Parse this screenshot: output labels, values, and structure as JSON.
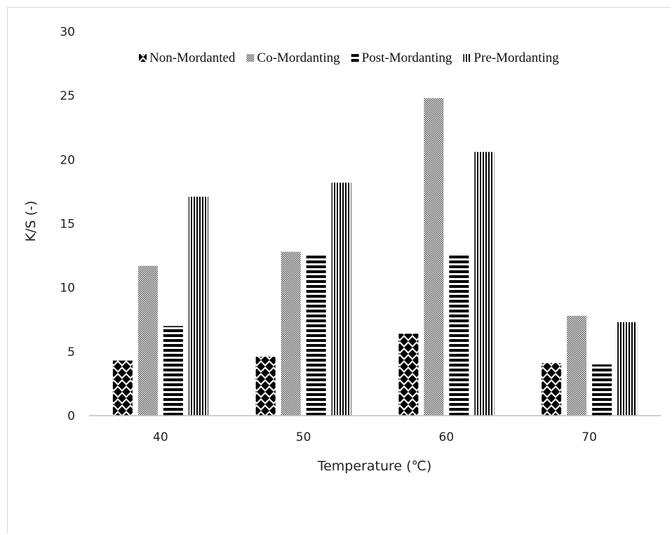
{
  "chart_data": {
    "type": "bar",
    "categories": [
      "40",
      "50",
      "60",
      "70"
    ],
    "series": [
      {
        "name": "Non-Mordanted",
        "values": [
          4.3,
          4.6,
          6.4,
          4.1
        ],
        "pattern": "diamond"
      },
      {
        "name": "Co-Mordanting",
        "values": [
          11.7,
          12.8,
          24.8,
          7.8
        ],
        "pattern": "checker"
      },
      {
        "name": "Post-Mordanting",
        "values": [
          7.0,
          12.5,
          12.6,
          4.0
        ],
        "pattern": "horizontal-stripes"
      },
      {
        "name": "Pre-Mordanting",
        "values": [
          17.1,
          18.2,
          20.6,
          7.3
        ],
        "pattern": "vertical-stripes"
      }
    ],
    "title": "",
    "xlabel": "Temperature (℃)",
    "ylabel": "K/S (-)",
    "ylim": [
      0,
      30
    ],
    "yticks": [
      0,
      5,
      10,
      15,
      20,
      25,
      30
    ],
    "grid": false,
    "legend_position": "top",
    "colors": {
      "ink": "#000000",
      "axis": "#bfbfbf",
      "background": "#ffffff"
    }
  }
}
